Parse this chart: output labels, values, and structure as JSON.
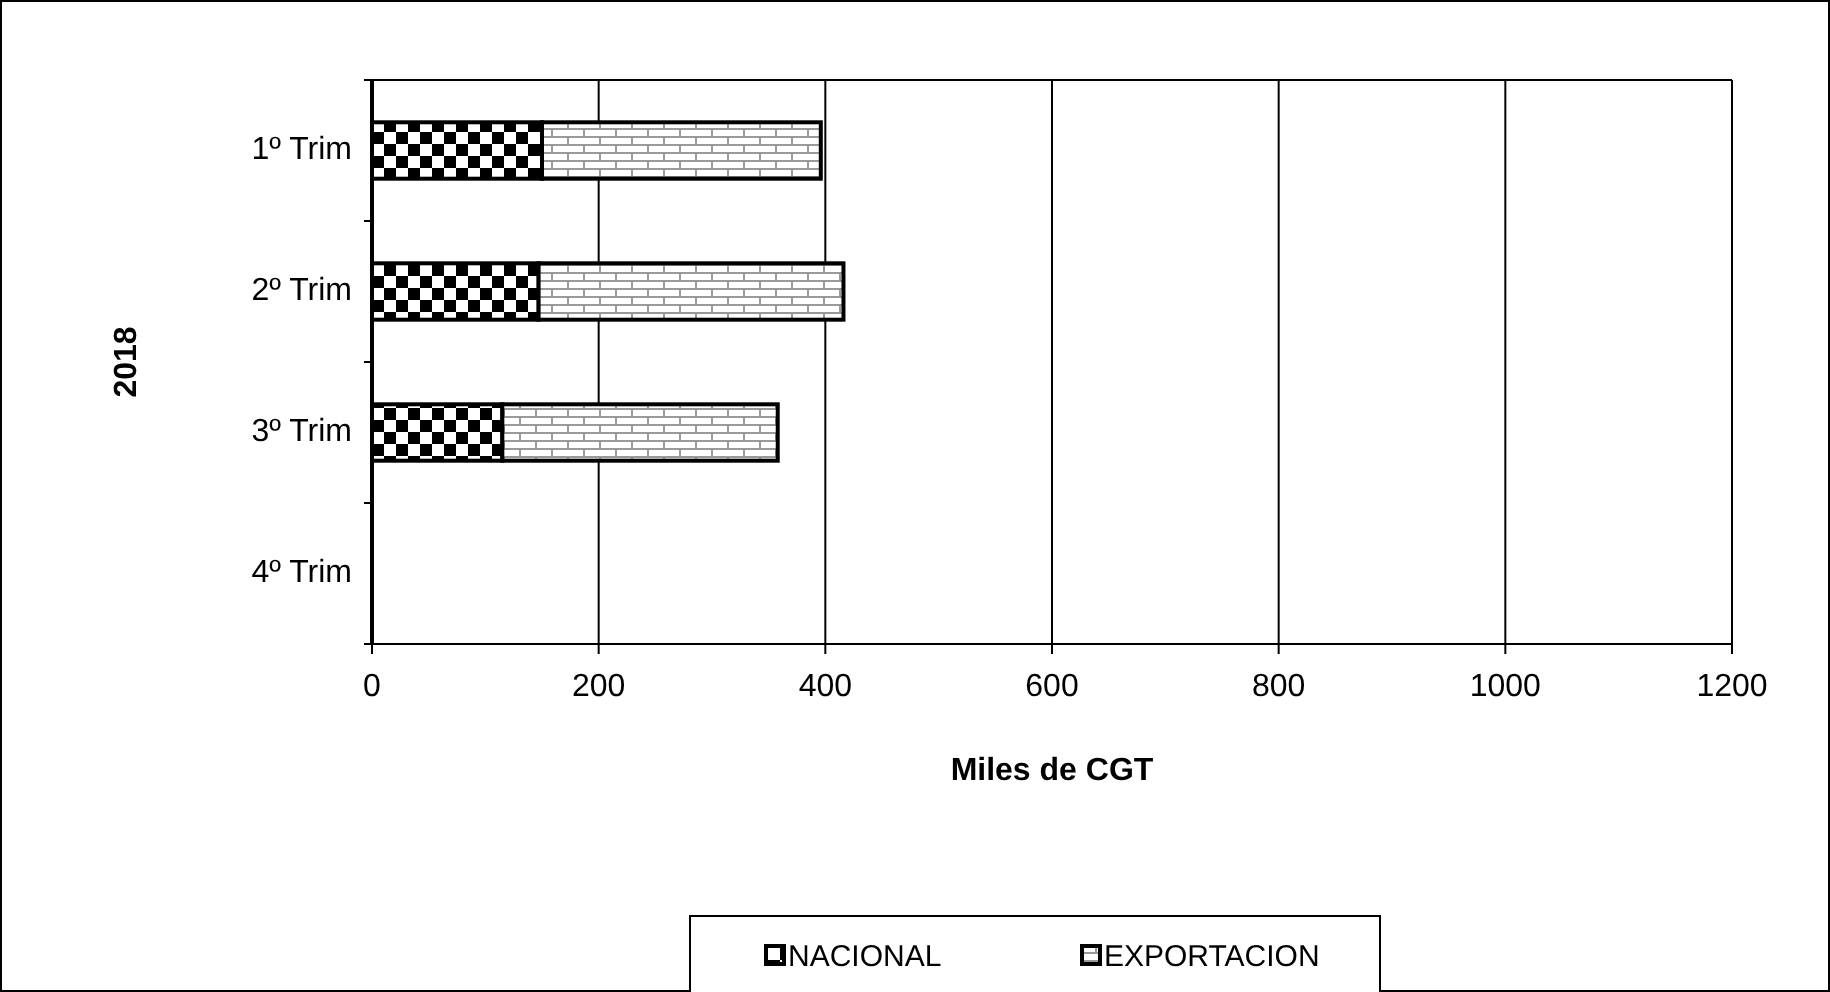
{
  "chart_data": {
    "type": "bar",
    "orientation": "horizontal",
    "stacked": true,
    "ylabel": "2018",
    "xlabel": "Miles de CGT",
    "categories": [
      "1º Trim",
      "2º Trim",
      "3º Trim",
      "4º Trim"
    ],
    "series": [
      {
        "name": "NACIONAL",
        "color": "#000000",
        "values": [
          150,
          147,
          115,
          null
        ]
      },
      {
        "name": "EXPORTACION",
        "color": "#000000",
        "values": [
          246,
          269,
          243,
          null
        ]
      }
    ],
    "xlim": [
      0,
      1200
    ],
    "xticks": [
      0,
      200,
      400,
      600,
      800,
      1000,
      1200
    ],
    "grid": "x",
    "legend": "bottom"
  }
}
